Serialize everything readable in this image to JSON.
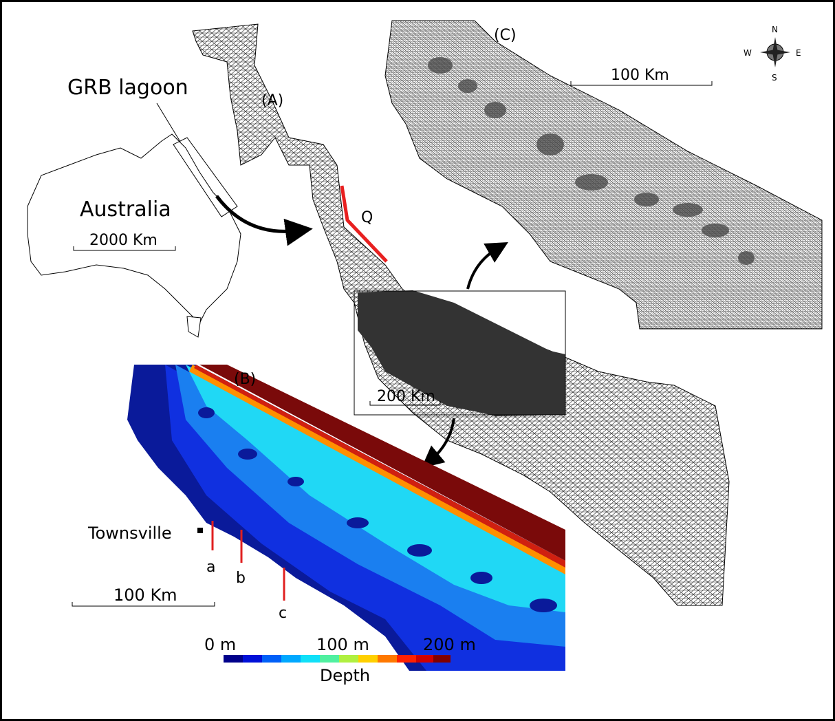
{
  "inset": {
    "title": "GRB lagoon",
    "country": "Australia",
    "scale": "2000 Km"
  },
  "panel_a": {
    "label": "(A)",
    "section_label": "Q",
    "scale": "200 Km"
  },
  "panel_c": {
    "label": "(C)",
    "scale": "100 Km",
    "compass": {
      "n": "N",
      "w": "W",
      "e": "E",
      "s": "S"
    }
  },
  "panel_b": {
    "label": "(B)",
    "city": "Townsville",
    "transects": [
      "a",
      "b",
      "c"
    ],
    "scale": "100 Km",
    "colorbar": {
      "ticks": [
        "0 m",
        "100 m",
        "200 m"
      ],
      "title": "Depth"
    }
  }
}
